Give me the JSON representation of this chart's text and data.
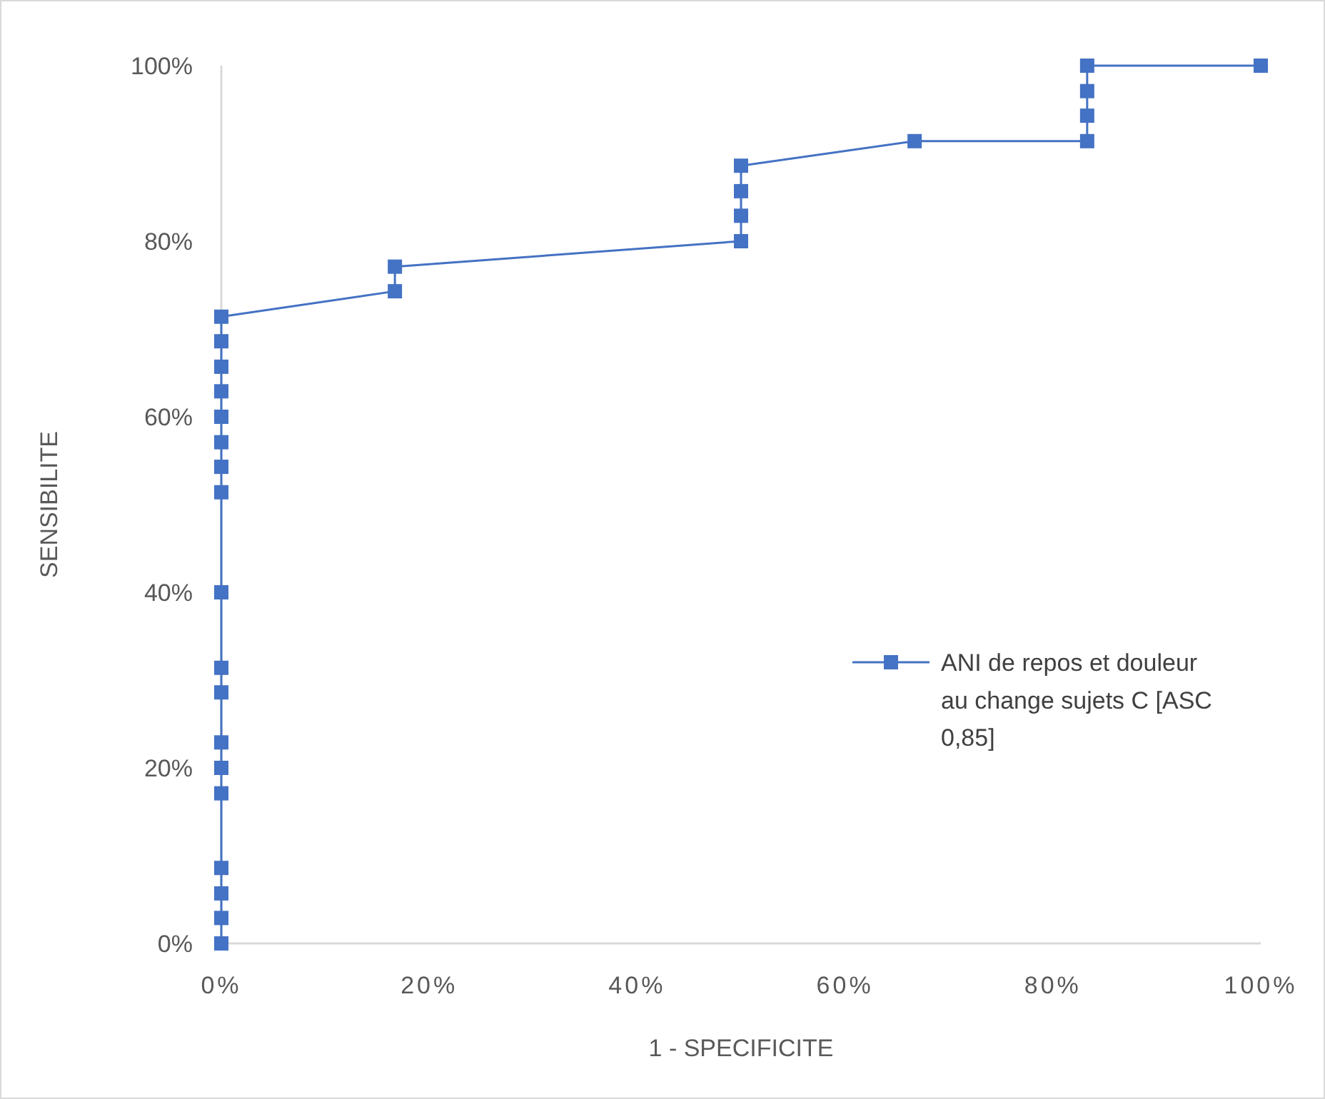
{
  "chart_data": {
    "type": "line",
    "xlabel": "1 - SPECIFICITE",
    "ylabel": "SENSIBILITE",
    "xlim": [
      0,
      100
    ],
    "ylim": [
      0,
      100
    ],
    "xticks": [
      {
        "value": 0,
        "label": "0%"
      },
      {
        "value": 20,
        "label": "20%"
      },
      {
        "value": 40,
        "label": "40%"
      },
      {
        "value": 60,
        "label": "60%"
      },
      {
        "value": 80,
        "label": "80%"
      },
      {
        "value": 100,
        "label": "100%"
      }
    ],
    "yticks": [
      {
        "value": 0,
        "label": "0%"
      },
      {
        "value": 20,
        "label": "20%"
      },
      {
        "value": 40,
        "label": "40%"
      },
      {
        "value": 60,
        "label": "60%"
      },
      {
        "value": 80,
        "label": "80%"
      },
      {
        "value": 100,
        "label": "100%"
      }
    ],
    "grid": false,
    "legend": "right",
    "marker": "square",
    "line_style": "solid",
    "series": [
      {
        "name": "ANI de repos et douleur au change sujets C [ASC 0,85]",
        "color": "#4472c4",
        "x": [
          0,
          0,
          0,
          0,
          0,
          0,
          0,
          0,
          0,
          0,
          0,
          0,
          0,
          0,
          0,
          0,
          0,
          0,
          16.7,
          16.7,
          50,
          50,
          50,
          50,
          66.7,
          83.3,
          83.3,
          83.3,
          83.3,
          100
        ],
        "values": [
          0,
          2.9,
          5.7,
          8.6,
          17.1,
          20,
          22.9,
          28.6,
          31.4,
          40,
          51.4,
          54.3,
          57.1,
          60,
          62.9,
          65.7,
          68.6,
          71.4,
          74.3,
          77.1,
          80,
          82.9,
          85.7,
          88.6,
          91.4,
          91.4,
          94.3,
          97.1,
          100,
          100
        ]
      }
    ]
  }
}
